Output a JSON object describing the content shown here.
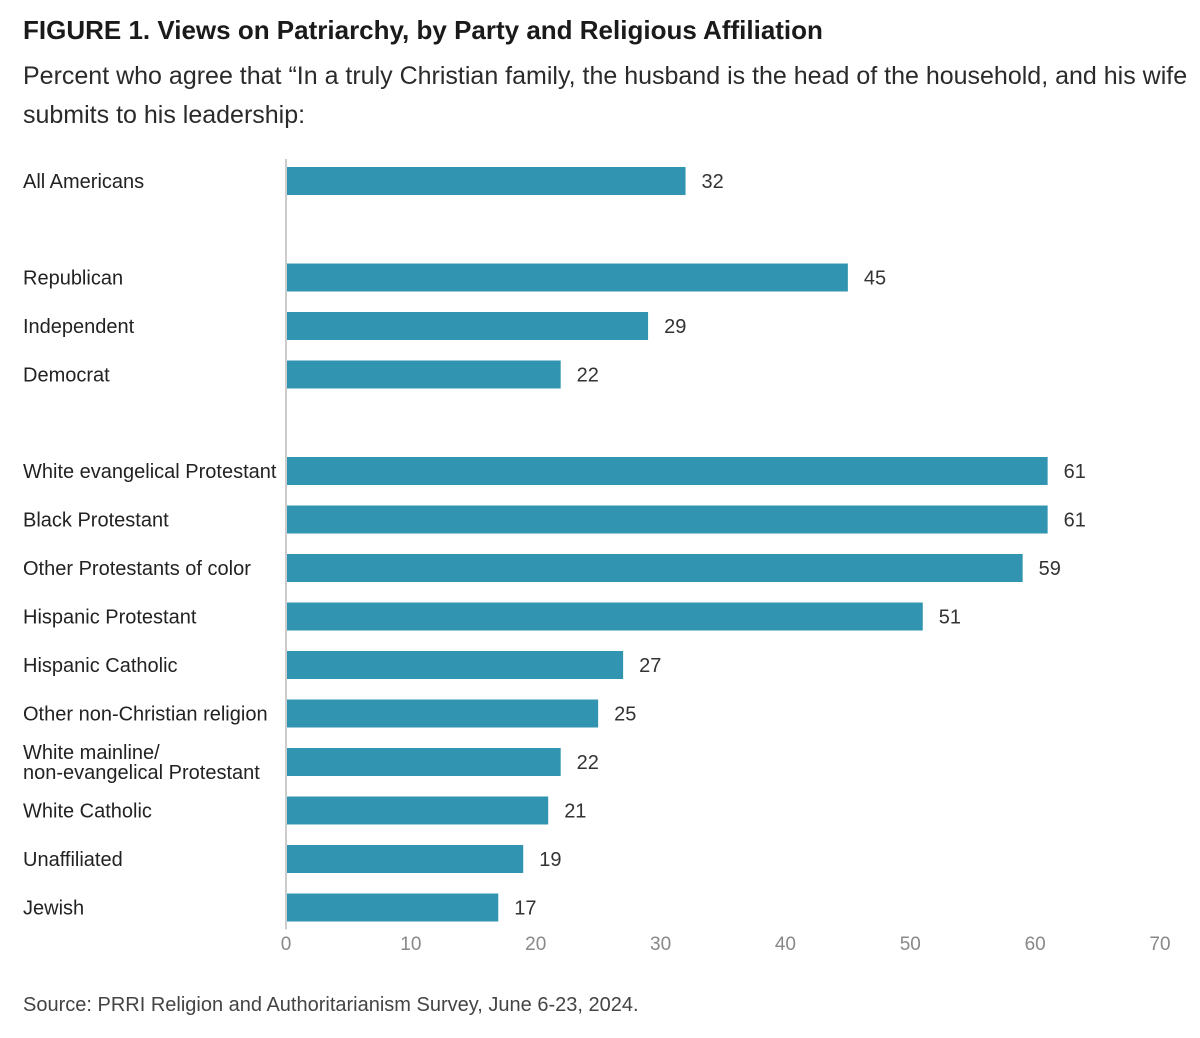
{
  "figure": {
    "title": "FIGURE 1.  Views on Patriarchy, by Party and Religious Affiliation",
    "subtitle": "Percent who agree that “In a truly Christian family, the husband is the head of the household, and his wife submits to his leadership:",
    "source": "Source: PRRI Religion and Authoritarianism Survey, June 6-23, 2024."
  },
  "chart_data": {
    "type": "bar",
    "orientation": "horizontal",
    "categories": [
      [
        "All Americans"
      ],
      [
        "Republican"
      ],
      [
        "Independent"
      ],
      [
        "Democrat"
      ],
      [
        "White evangelical Protestant"
      ],
      [
        "Black Protestant"
      ],
      [
        "Other Protestants of color"
      ],
      [
        "Hispanic Protestant"
      ],
      [
        "Hispanic Catholic"
      ],
      [
        "Other non-Christian religion"
      ],
      [
        "White mainline/",
        "non-evangelical Protestant"
      ],
      [
        "White Catholic"
      ],
      [
        "Unaffiliated"
      ],
      [
        "Jewish"
      ]
    ],
    "values": [
      32,
      45,
      29,
      22,
      61,
      61,
      59,
      51,
      27,
      25,
      22,
      21,
      19,
      17
    ],
    "groups": [
      {
        "label": "",
        "start": 0,
        "end": 0
      },
      {
        "label": "",
        "start": 1,
        "end": 3
      },
      {
        "label": "",
        "start": 4,
        "end": 13
      }
    ],
    "xlim": [
      0,
      70
    ],
    "xticks": [
      0,
      10,
      20,
      30,
      40,
      50,
      60,
      70
    ],
    "xlabel": "",
    "ylabel": "",
    "grid": false,
    "legend": "none",
    "bar_color": "#3194b0",
    "axis_color": "#cccccc"
  }
}
